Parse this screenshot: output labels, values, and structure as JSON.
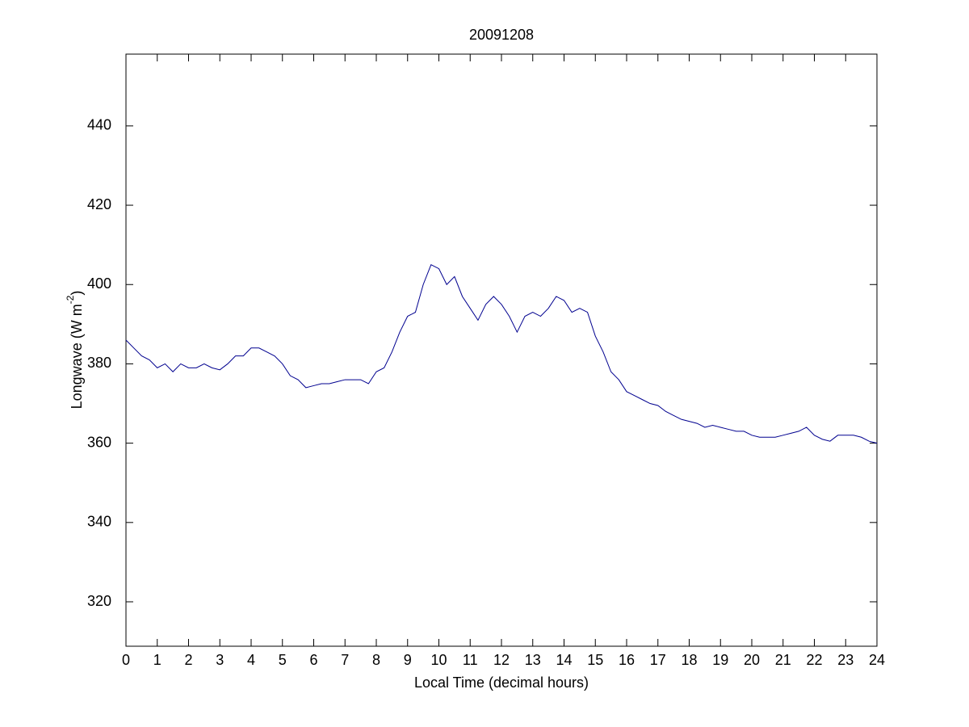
{
  "chart_data": {
    "type": "line",
    "title": "20091208",
    "xlabel": "Local Time (decimal hours)",
    "ylabel": [
      "Longwave (W m",
      "-2",
      ")"
    ],
    "xlim": [
      0,
      24
    ],
    "xticks": [
      0,
      1,
      2,
      3,
      4,
      5,
      6,
      7,
      8,
      9,
      10,
      11,
      12,
      13,
      14,
      15,
      16,
      17,
      18,
      19,
      20,
      21,
      22,
      23,
      24
    ],
    "ylim": [
      308.8,
      458.1
    ],
    "yticks": [
      320,
      340,
      360,
      380,
      400,
      420,
      440
    ],
    "grid": false,
    "x": [
      0,
      0.25,
      0.5,
      0.75,
      1,
      1.25,
      1.5,
      1.75,
      2,
      2.25,
      2.5,
      2.75,
      3,
      3.25,
      3.5,
      3.75,
      4,
      4.25,
      4.5,
      4.75,
      5,
      5.25,
      5.5,
      5.75,
      6,
      6.25,
      6.5,
      6.75,
      7,
      7.25,
      7.5,
      7.75,
      8,
      8.25,
      8.5,
      8.75,
      9,
      9.25,
      9.5,
      9.75,
      10,
      10.25,
      10.5,
      10.75,
      11,
      11.25,
      11.5,
      11.75,
      12,
      12.25,
      12.5,
      12.75,
      13,
      13.25,
      13.5,
      13.75,
      14,
      14.25,
      14.5,
      14.75,
      15,
      15.25,
      15.5,
      15.75,
      16,
      16.25,
      16.5,
      16.75,
      17,
      17.25,
      17.5,
      17.75,
      18,
      18.25,
      18.5,
      18.75,
      19,
      19.25,
      19.5,
      19.75,
      20,
      20.25,
      20.5,
      20.75,
      21,
      21.25,
      21.5,
      21.75,
      22,
      22.25,
      22.5,
      22.75,
      23,
      23.25,
      23.5,
      23.75,
      24
    ],
    "series": [
      {
        "name": "Longwave",
        "color": "#00008f",
        "values": [
          386,
          384,
          382,
          381,
          379,
          380,
          378,
          380,
          379,
          379,
          380,
          379,
          378.5,
          380,
          382,
          382,
          384,
          384,
          383,
          382,
          380,
          377,
          376,
          374,
          374.5,
          375,
          375,
          375.5,
          376,
          376,
          376,
          375,
          378,
          379,
          383,
          388,
          392,
          393,
          400,
          405,
          404,
          400,
          402,
          397,
          394,
          391,
          395,
          397,
          395,
          392,
          388,
          392,
          393,
          392,
          394,
          397,
          396,
          393,
          394,
          393,
          387,
          383,
          378,
          376,
          373,
          372,
          371,
          370,
          369.5,
          368,
          367,
          366,
          365.5,
          365,
          364,
          364.5,
          364,
          363.5,
          363,
          363,
          362,
          361.5,
          361.5,
          361.5,
          362,
          362.5,
          363,
          364,
          362,
          361,
          360.5,
          362,
          362,
          362,
          361.5,
          360.5,
          360
        ]
      }
    ]
  }
}
